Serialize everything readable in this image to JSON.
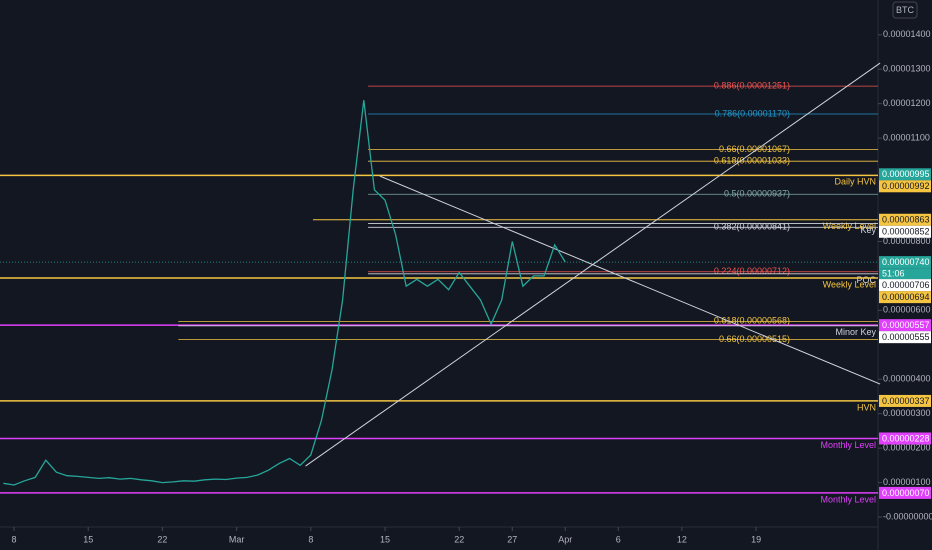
{
  "chart_data": {
    "type": "line",
    "symbol": "BTC",
    "countdown": "51:06",
    "xlim": [
      -1.32,
      81.5
    ],
    "ylim": [
      -2.9e-07,
      1.501e-05
    ],
    "xticks": [
      {
        "value": 0,
        "label": "8"
      },
      {
        "value": 7,
        "label": "15"
      },
      {
        "value": 14,
        "label": "22"
      },
      {
        "value": 21,
        "label": "Mar"
      },
      {
        "value": 28,
        "label": "8"
      },
      {
        "value": 35,
        "label": "15"
      },
      {
        "value": 42,
        "label": "22"
      },
      {
        "value": 47,
        "label": "27"
      },
      {
        "value": 52,
        "label": "Apr"
      },
      {
        "value": 57,
        "label": "6"
      },
      {
        "value": 63,
        "label": "12"
      },
      {
        "value": 70,
        "label": "19"
      }
    ],
    "yticks": [
      {
        "value": 1.4e-05,
        "label": "0.00001400"
      },
      {
        "value": 1.3e-05,
        "label": "0.00001300"
      },
      {
        "value": 1.2e-05,
        "label": "0.00001200"
      },
      {
        "value": 1.1e-05,
        "label": "0.00001100"
      },
      {
        "value": 8e-06,
        "label": "0.00000800"
      },
      {
        "value": 6e-06,
        "label": "0.00000600"
      },
      {
        "value": 4e-06,
        "label": "0.00000400"
      },
      {
        "value": 3e-06,
        "label": "0.00000300"
      },
      {
        "value": 2e-06,
        "label": "0.00000200"
      },
      {
        "value": 1e-06,
        "label": "0.00000100"
      },
      {
        "value": 0,
        "label": "-0.00000000"
      }
    ],
    "series": [
      {
        "color": "#26a69a",
        "x": [
          -1,
          0,
          1,
          2,
          3,
          4,
          5,
          6,
          7,
          8,
          9,
          10,
          11,
          12,
          13,
          14,
          15,
          16,
          17,
          18,
          19,
          20,
          21,
          22,
          23,
          24,
          25,
          26,
          27,
          28,
          29,
          30,
          31,
          32,
          33,
          34,
          35,
          36,
          37,
          38,
          39,
          40,
          41,
          42,
          43,
          44,
          45,
          46,
          47,
          48,
          49,
          50,
          51,
          52
        ],
        "values": [
          9.8e-07,
          9.3e-07,
          1.05e-06,
          1.15e-06,
          1.65e-06,
          1.3e-06,
          1.2e-06,
          1.18e-06,
          1.15e-06,
          1.12e-06,
          1.14e-06,
          1.1e-06,
          1.12e-06,
          1.08e-06,
          1.05e-06,
          1e-06,
          1.02e-06,
          1.05e-06,
          1.04e-06,
          1.08e-06,
          1.1e-06,
          1.09e-06,
          1.13e-06,
          1.15e-06,
          1.22e-06,
          1.36e-06,
          1.55e-06,
          1.7e-06,
          1.5e-06,
          1.8e-06,
          2.8e-06,
          4.27e-06,
          6.3e-06,
          9.5e-06,
          1.21e-05,
          9.5e-06,
          9.2e-06,
          8.2e-06,
          6.7e-06,
          6.9e-06,
          6.7e-06,
          6.9e-06,
          6.6e-06,
          7.1e-06,
          6.7e-06,
          6.3e-06,
          5.6e-06,
          6.3e-06,
          8e-06,
          6.7e-06,
          7e-06,
          7e-06,
          7.9e-06,
          7.4e-06
        ]
      }
    ],
    "current_price": {
      "value": 7.4e-06,
      "label": "0.00000740",
      "color": "#26a69a"
    },
    "price_labels": [
      {
        "value": 9.95e-06,
        "label": "0.00000995",
        "color": "#26a69a"
      }
    ],
    "levels": [
      {
        "value": 9.92e-06,
        "label": "0.00000992",
        "name": "Daily HVN",
        "color": "#f5c542"
      },
      {
        "value": 8.63e-06,
        "label": "0.00000863",
        "name": "Weekly Level",
        "color": "#f5c542",
        "from": 28.2
      },
      {
        "value": 8.52e-06,
        "label": "0.00000852",
        "name": "Key",
        "color": "#d1d4dc",
        "from": 33.4
      },
      {
        "value": 7.06e-06,
        "label": "0.00000706",
        "name": "POC",
        "color": "#d1d4dc",
        "from": 33.4
      },
      {
        "value": 6.94e-06,
        "label": "0.00000694",
        "name": "Weekly Level",
        "color": "#f5c542"
      },
      {
        "value": 5.57e-06,
        "label": "0.00000557",
        "color": "#e040fb"
      },
      {
        "value": 5.55e-06,
        "label": "0.00000555",
        "name": "Minor Key",
        "color": "#d1d4dc",
        "from": 15.5
      },
      {
        "value": 3.37e-06,
        "label": "0.00000337",
        "name": "HVN",
        "color": "#f5c542"
      },
      {
        "value": 2.28e-06,
        "label": "0.00000228",
        "name": "Monthly Level",
        "color": "#e040fb"
      },
      {
        "value": 7e-07,
        "label": "0.00000070",
        "name": "Monthly Level",
        "color": "#e040fb"
      }
    ],
    "fib_levels": [
      {
        "value": 1.251e-05,
        "label": "0.886(0.00001251)",
        "color": "#ef5350",
        "from": 33.4
      },
      {
        "value": 1.17e-05,
        "label": "0.786(0.00001170)",
        "color": "#2196c8",
        "from": 33.4
      },
      {
        "value": 1.067e-05,
        "label": "0.66(0.00001067)",
        "color": "#f5c542",
        "from": 33.4
      },
      {
        "value": 1.033e-05,
        "label": "0.618(0.00001033)",
        "color": "#f5c542",
        "from": 33.4
      },
      {
        "value": 9.37e-06,
        "label": "0.5(0.00000937)",
        "color": "#80a8a8",
        "from": 33.4
      },
      {
        "value": 8.41e-06,
        "label": "0.382(0.00000841)",
        "color": "#d1d4dc",
        "from": 33.4
      },
      {
        "value": 7.12e-06,
        "label": "0.224(0.00000712)",
        "color": "#ef5350",
        "from": 33.4
      },
      {
        "value": 5.68e-06,
        "label": "0.618(0.00000568)",
        "color": "#f5c542",
        "from": 15.5
      },
      {
        "value": 5.15e-06,
        "label": "0.66(0.00000515)",
        "color": "#f5c542",
        "from": 15.5
      }
    ],
    "trendlines": [
      {
        "x": [
          27.5,
          81.7
        ],
        "y": [
          1.48e-06,
          1.318e-05
        ]
      },
      {
        "x": [
          34.5,
          81.7
        ],
        "y": [
          9.9e-06,
          3.86e-06
        ]
      }
    ]
  }
}
